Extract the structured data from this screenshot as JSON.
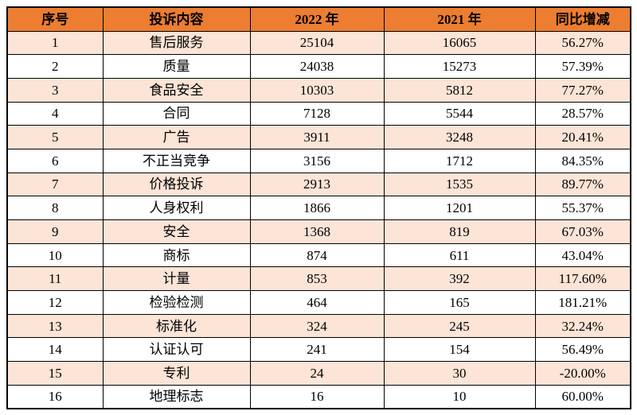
{
  "colors": {
    "header_bg": "#ED7D31",
    "alt_row_bg": "#FCE4D6",
    "border": "#000000",
    "text": "#000000",
    "page_bg": "#FFFFFF"
  },
  "table": {
    "columns": [
      "序号",
      "投诉内容",
      "2022 年",
      "2021 年",
      "同比增减"
    ],
    "rows": [
      [
        "1",
        "售后服务",
        "25104",
        "16065",
        "56.27%"
      ],
      [
        "2",
        "质量",
        "24038",
        "15273",
        "57.39%"
      ],
      [
        "3",
        "食品安全",
        "10303",
        "5812",
        "77.27%"
      ],
      [
        "4",
        "合同",
        "7128",
        "5544",
        "28.57%"
      ],
      [
        "5",
        "广告",
        "3911",
        "3248",
        "20.41%"
      ],
      [
        "6",
        "不正当竞争",
        "3156",
        "1712",
        "84.35%"
      ],
      [
        "7",
        "价格投诉",
        "2913",
        "1535",
        "89.77%"
      ],
      [
        "8",
        "人身权利",
        "1866",
        "1201",
        "55.37%"
      ],
      [
        "9",
        "安全",
        "1368",
        "819",
        "67.03%"
      ],
      [
        "10",
        "商标",
        "874",
        "611",
        "43.04%"
      ],
      [
        "11",
        "计量",
        "853",
        "392",
        "117.60%"
      ],
      [
        "12",
        "检验检测",
        "464",
        "165",
        "181.21%"
      ],
      [
        "13",
        "标准化",
        "324",
        "245",
        "32.24%"
      ],
      [
        "14",
        "认证认可",
        "241",
        "154",
        "56.49%"
      ],
      [
        "15",
        "专利",
        "24",
        "30",
        "-20.00%"
      ],
      [
        "16",
        "地理标志",
        "16",
        "10",
        "60.00%"
      ]
    ]
  },
  "chart_data": {
    "type": "table",
    "columns": [
      "序号",
      "投诉内容",
      "2022 年",
      "2021 年",
      "同比增减"
    ],
    "categories": [
      "售后服务",
      "质量",
      "食品安全",
      "合同",
      "广告",
      "不正当竞争",
      "价格投诉",
      "人身权利",
      "安全",
      "商标",
      "计量",
      "检验检测",
      "标准化",
      "认证认可",
      "专利",
      "地理标志"
    ],
    "series": [
      {
        "name": "2022 年",
        "values": [
          25104,
          24038,
          10303,
          7128,
          3911,
          3156,
          2913,
          1866,
          1368,
          874,
          853,
          464,
          324,
          241,
          24,
          16
        ]
      },
      {
        "name": "2021 年",
        "values": [
          16065,
          15273,
          5812,
          5544,
          3248,
          1712,
          1535,
          1201,
          819,
          611,
          392,
          165,
          245,
          154,
          30,
          10
        ]
      },
      {
        "name": "同比增减",
        "values": [
          "56.27%",
          "57.39%",
          "77.27%",
          "28.57%",
          "20.41%",
          "84.35%",
          "89.77%",
          "55.37%",
          "67.03%",
          "43.04%",
          "117.60%",
          "181.21%",
          "32.24%",
          "56.49%",
          "-20.00%",
          "60.00%"
        ]
      }
    ]
  }
}
